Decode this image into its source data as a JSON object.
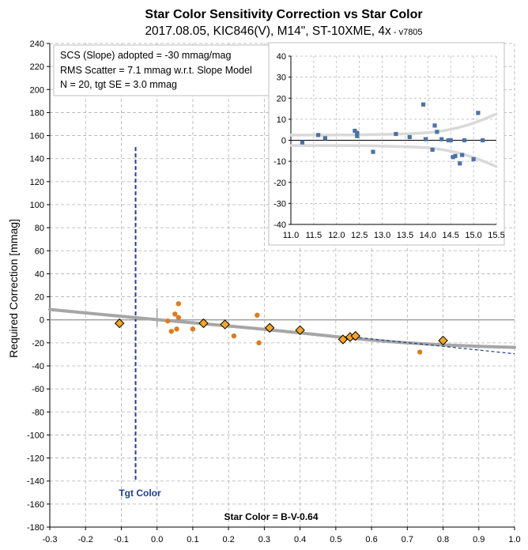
{
  "title": "Star Color Sensitivity Correction vs Star Color",
  "subtitle": "2017.08.05, KIC846(V), M14\", ST-10XME, 4x",
  "subtitle_version": " - v7805",
  "notes": [
    "SCS (Slope) adopted  =  -30 mmag/mag",
    "RMS Scatter = 7.1 mmag w.r.t. Slope Model",
    "N = 20,  tgt SE = 3.0 mmag"
  ],
  "target_label": "Tgt Color",
  "colors": {
    "grid": "#b0b0b0",
    "model_curve": "#a6a6a6",
    "orange_dot": "#e07b1c",
    "diamond_fill": "#f5a623",
    "target_line": "#1f3f8f",
    "inset_point": "#4a72a8",
    "inset_band": "#d9d9d9"
  },
  "chart_data": [
    {
      "type": "scatter",
      "title": "Star Color Sensitivity Correction vs Star Color",
      "xlabel": "Star Color = B-V-0.64",
      "ylabel": "Required Correction [mmag]",
      "xlim": [
        -0.3,
        1.0
      ],
      "ylim": [
        -180,
        240
      ],
      "x_ticks": [
        "-0.3",
        "-0.2",
        "-0.1",
        "0.0",
        "0.1",
        "0.2",
        "0.3",
        "0.4",
        "0.5",
        "0.6",
        "0.7",
        "0.8",
        "0.9",
        "1.0"
      ],
      "y_ticks": [
        "240",
        "220",
        "200",
        "180",
        "160",
        "140",
        "120",
        "100",
        "80",
        "60",
        "40",
        "20",
        "0",
        "-20",
        "-40",
        "-60",
        "-80",
        "-100",
        "-120",
        "-140",
        "-160",
        "-180"
      ],
      "grid": true,
      "target_color_x": -0.06,
      "series": [
        {
          "style": "individual stars (orange dots)",
          "points": [
            [
              0.03,
              -1
            ],
            [
              0.04,
              -10
            ],
            [
              0.05,
              5
            ],
            [
              0.055,
              -8
            ],
            [
              0.06,
              2
            ],
            [
              0.06,
              14
            ],
            [
              0.1,
              -8
            ],
            [
              0.215,
              -14
            ],
            [
              0.28,
              4
            ],
            [
              0.285,
              -20
            ],
            [
              0.735,
              -28
            ]
          ]
        },
        {
          "style": "binned averages (diamonds)",
          "points": [
            [
              -0.105,
              -3
            ],
            [
              0.13,
              -3
            ],
            [
              0.19,
              -4
            ],
            [
              0.315,
              -7
            ],
            [
              0.4,
              -9
            ],
            [
              0.52,
              -17
            ],
            [
              0.54,
              -15
            ],
            [
              0.555,
              -14
            ],
            [
              0.8,
              -18
            ]
          ]
        },
        {
          "style": "curved model (thick gray)",
          "points": [
            [
              -0.3,
              9
            ],
            [
              0.0,
              0
            ],
            [
              0.3,
              -8
            ],
            [
              0.6,
              -18
            ],
            [
              0.8,
              -22
            ],
            [
              1.0,
              -24
            ]
          ]
        },
        {
          "style": "slope model (dashed blue)",
          "points": [
            [
              0.55,
              -15
            ],
            [
              1.0,
              -29.5
            ]
          ]
        }
      ]
    },
    {
      "type": "scatter",
      "title": "",
      "xlabel": "",
      "ylabel": "",
      "xlim": [
        11.0,
        15.5
      ],
      "ylim": [
        -40,
        40
      ],
      "x_ticks": [
        "11.0",
        "11.5",
        "12.0",
        "12.5",
        "13.0",
        "13.5",
        "14.0",
        "14.5",
        "15.0",
        "15.5"
      ],
      "y_ticks": [
        "40",
        "30",
        "20",
        "10",
        "0",
        "-10",
        "-20",
        "-30",
        "-40"
      ],
      "grid": true,
      "series": [
        {
          "style": "residuals (blue squares)",
          "points": [
            [
              11.25,
              -1
            ],
            [
              11.6,
              2.5
            ],
            [
              11.75,
              1
            ],
            [
              12.4,
              4.5
            ],
            [
              12.45,
              2
            ],
            [
              12.45,
              3.5
            ],
            [
              12.8,
              -5.5
            ],
            [
              13.3,
              3
            ],
            [
              13.6,
              1.5
            ],
            [
              13.9,
              17
            ],
            [
              13.95,
              0.5
            ],
            [
              14.1,
              -4.5
            ],
            [
              14.15,
              7
            ],
            [
              14.2,
              4
            ],
            [
              14.3,
              0.5
            ],
            [
              14.45,
              0
            ],
            [
              14.5,
              0
            ],
            [
              14.55,
              -8
            ],
            [
              14.6,
              -7.5
            ],
            [
              14.7,
              -11
            ],
            [
              14.75,
              -7
            ],
            [
              14.8,
              0
            ],
            [
              15.0,
              -9
            ],
            [
              15.1,
              13
            ],
            [
              15.2,
              0
            ]
          ]
        },
        {
          "style": "upper envelope (light gray)",
          "points": [
            [
              11.0,
              2.5
            ],
            [
              12.5,
              2.5
            ],
            [
              13.5,
              3
            ],
            [
              14.0,
              3.5
            ],
            [
              14.5,
              5
            ],
            [
              15.0,
              8
            ],
            [
              15.5,
              12.5
            ]
          ]
        },
        {
          "style": "lower envelope (light gray)",
          "points": [
            [
              11.0,
              -2.5
            ],
            [
              12.5,
              -2.5
            ],
            [
              13.5,
              -3
            ],
            [
              14.0,
              -3.5
            ],
            [
              14.5,
              -5
            ],
            [
              15.0,
              -8
            ],
            [
              15.5,
              -12.5
            ]
          ]
        }
      ]
    }
  ]
}
